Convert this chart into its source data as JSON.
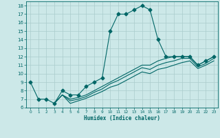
{
  "xlabel": "Humidex (Indice chaleur)",
  "bg_color": "#cce8e8",
  "line_color": "#006666",
  "grid_color": "#aacccc",
  "xlim": [
    -0.5,
    23.5
  ],
  "ylim": [
    6,
    18.5
  ],
  "xticks": [
    0,
    1,
    2,
    3,
    4,
    5,
    6,
    7,
    8,
    9,
    10,
    11,
    12,
    13,
    14,
    15,
    16,
    17,
    18,
    19,
    20,
    21,
    22,
    23
  ],
  "yticks": [
    6,
    7,
    8,
    9,
    10,
    11,
    12,
    13,
    14,
    15,
    16,
    17,
    18
  ],
  "lines": [
    {
      "x": [
        0,
        1,
        2,
        3,
        4,
        5,
        6,
        7,
        8,
        9,
        10,
        11,
        12,
        13,
        14,
        15,
        16,
        17,
        18,
        19,
        20,
        21,
        22,
        23
      ],
      "y": [
        9,
        7,
        7,
        6.5,
        8,
        7.5,
        7.5,
        8.5,
        9,
        9.5,
        15,
        17,
        17,
        17.5,
        18,
        17.5,
        14,
        12,
        12,
        12,
        12,
        11,
        11.5,
        12
      ],
      "marker": "D",
      "markersize": 2.5,
      "linestyle": "-"
    },
    {
      "x": [
        3,
        4,
        5,
        6,
        7,
        8,
        9,
        10,
        11,
        12,
        13,
        14,
        15,
        16,
        17,
        18,
        19,
        20,
        21,
        22,
        23
      ],
      "y": [
        6.5,
        7.5,
        7.0,
        7.2,
        7.5,
        8.0,
        8.5,
        9.0,
        9.5,
        10.0,
        10.5,
        11.0,
        11.0,
        11.5,
        11.8,
        12.0,
        12.0,
        12.0,
        11.0,
        11.5,
        12.0
      ],
      "marker": null,
      "markersize": 0,
      "linestyle": "-"
    },
    {
      "x": [
        3,
        4,
        5,
        6,
        7,
        8,
        9,
        10,
        11,
        12,
        13,
        14,
        15,
        16,
        17,
        18,
        19,
        20,
        21,
        22,
        23
      ],
      "y": [
        6.5,
        7.5,
        6.8,
        7.0,
        7.3,
        7.8,
        8.2,
        8.8,
        9.2,
        9.7,
        10.2,
        10.7,
        10.5,
        11.0,
        11.3,
        11.5,
        11.8,
        11.8,
        10.8,
        11.2,
        11.8
      ],
      "marker": null,
      "markersize": 0,
      "linestyle": "-"
    },
    {
      "x": [
        3,
        4,
        5,
        6,
        7,
        8,
        9,
        10,
        11,
        12,
        13,
        14,
        15,
        16,
        17,
        18,
        19,
        20,
        21,
        22,
        23
      ],
      "y": [
        6.5,
        7.5,
        6.5,
        6.8,
        7.1,
        7.5,
        7.9,
        8.4,
        8.7,
        9.2,
        9.7,
        10.2,
        10.0,
        10.5,
        10.7,
        11.0,
        11.3,
        11.5,
        10.6,
        11.0,
        11.5
      ],
      "marker": null,
      "markersize": 0,
      "linestyle": "-"
    }
  ]
}
